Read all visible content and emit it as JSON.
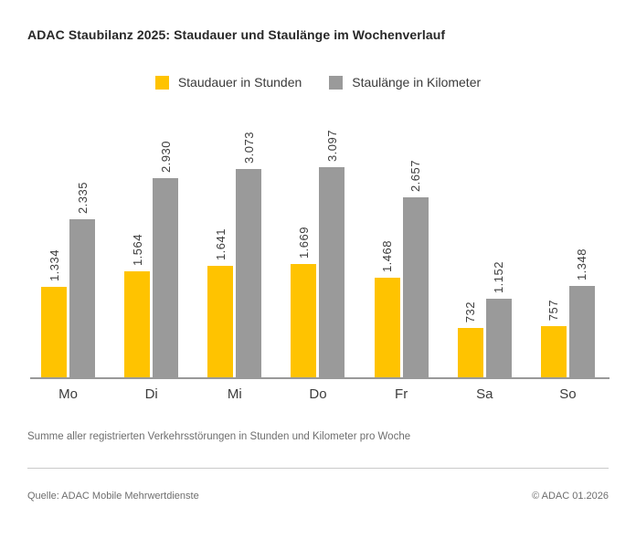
{
  "title": "ADAC Staubilanz 2025: Staudauer und Staulänge im Wochenverlauf",
  "footnote": "Summe aller registrierten Verkehrsstörungen in Stunden und Kilometer pro Woche",
  "footer": {
    "source": "Quelle: ADAC Mobile Mehrwertdienste",
    "copyright": "© ADAC 01.2026"
  },
  "colors": {
    "hours_bar": "#ffc300",
    "km_bar": "#9a9a9a",
    "axis_line": "#999999",
    "divider": "#c9c9c9"
  },
  "chart_data": {
    "type": "bar",
    "title": "ADAC Staubilanz 2025: Staudauer und Staulänge im Wochenverlauf",
    "categories": [
      "Mo",
      "Di",
      "Mi",
      "Do",
      "Fr",
      "Sa",
      "So"
    ],
    "series": [
      {
        "name": "Staudauer in Stunden",
        "color": "#ffc300",
        "values": [
          1334,
          1564,
          1641,
          1669,
          1468,
          732,
          757
        ],
        "labels": [
          "1.334",
          "1.564",
          "1.641",
          "1.669",
          "1.468",
          "732",
          "757"
        ]
      },
      {
        "name": "Staulänge in Kilometer",
        "color": "#9a9a9a",
        "values": [
          2335,
          2930,
          3073,
          3097,
          2657,
          1152,
          1348
        ],
        "labels": [
          "2.335",
          "2.930",
          "3.073",
          "3.097",
          "2.657",
          "1.152",
          "1.348"
        ]
      }
    ],
    "xlabel": "",
    "ylabel": "",
    "ylim": [
      0,
      3097
    ],
    "grid": false,
    "legend_position": "top-center",
    "value_labels_rotated": true,
    "y_axis_visible": false
  }
}
